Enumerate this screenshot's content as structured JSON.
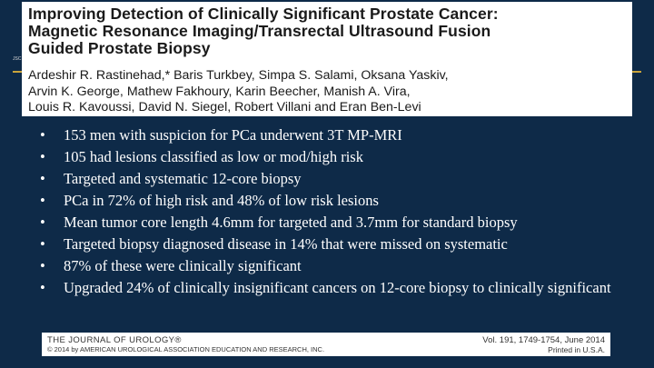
{
  "header": {
    "title_lines": [
      "Improving Detection of Clinically Significant Prostate Cancer:",
      "Magnetic Resonance Imaging/Transrectal Ultrasound Fusion",
      "Guided Prostate Biopsy"
    ],
    "authors_lines": [
      "Ardeshir R. Rastinehad,* Baris Turkbey, Simpa S. Salami, Oksana Yaskiv,",
      "Arvin K. George, Mathew Fakhoury, Karin Beecher, Manish A. Vira,",
      "Louis R. Kavoussi, David N. Siegel, Robert Villani and Eran Ben-Levi"
    ],
    "side_code": "JSC"
  },
  "bullets": [
    "153 men with suspicion for PCa underwent 3T MP-MRI",
    "105 had lesions classified as low or mod/high risk",
    "Targeted and systematic 12-core biopsy",
    "PCa in 72% of high risk and 48% of low risk lesions",
    "Mean tumor core length 4.6mm for targeted and 3.7mm for standard biopsy",
    "Targeted biopsy diagnosed disease in 14% that were missed on systematic",
    "87% of these were clinically significant",
    "Upgraded 24% of clinically insignificant cancers on 12-core biopsy to clinically significant"
  ],
  "bullet_glyph": "•",
  "footer": {
    "journal": "THE JOURNAL OF UROLOGY®",
    "copyright": "© 2014 by AMERICAN UROLOGICAL ASSOCIATION EDUCATION AND RESEARCH, INC.",
    "volume": "Vol. 191, 1749-1754, June 2014",
    "printed": "Printed in U.S.A."
  },
  "colors": {
    "background": "#0e2a48",
    "rule": "#c9a43b",
    "text": "#ffffff"
  }
}
